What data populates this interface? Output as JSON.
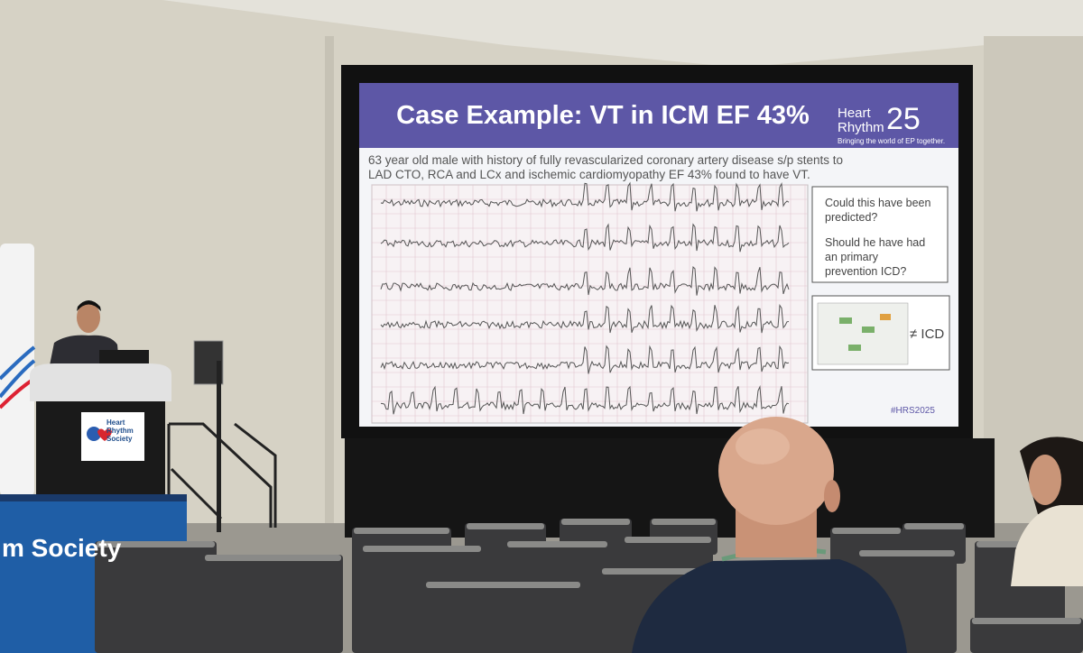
{
  "slide": {
    "title": "Case Example: VT in ICM EF 43%",
    "logo": {
      "line1": "Heart",
      "line2": "Rhythm",
      "year": "25",
      "tagline": "Bringing the world of EP together."
    },
    "description": "63 year old male with history of fully revascularized coronary artery disease s/p stents to LAD CTO, RCA and LCx and ischemic cardiomyopathy EF 43% found to have VT.",
    "questions": [
      "Could this have been predicted?",
      "Should he have had an primary prevention ICD?"
    ],
    "flowchart_label": "≠ ICD",
    "hashtag": "#HRS2025"
  },
  "podium": {
    "logo": "Heart Rhythm Society"
  },
  "banner": {
    "text": "m Society"
  }
}
